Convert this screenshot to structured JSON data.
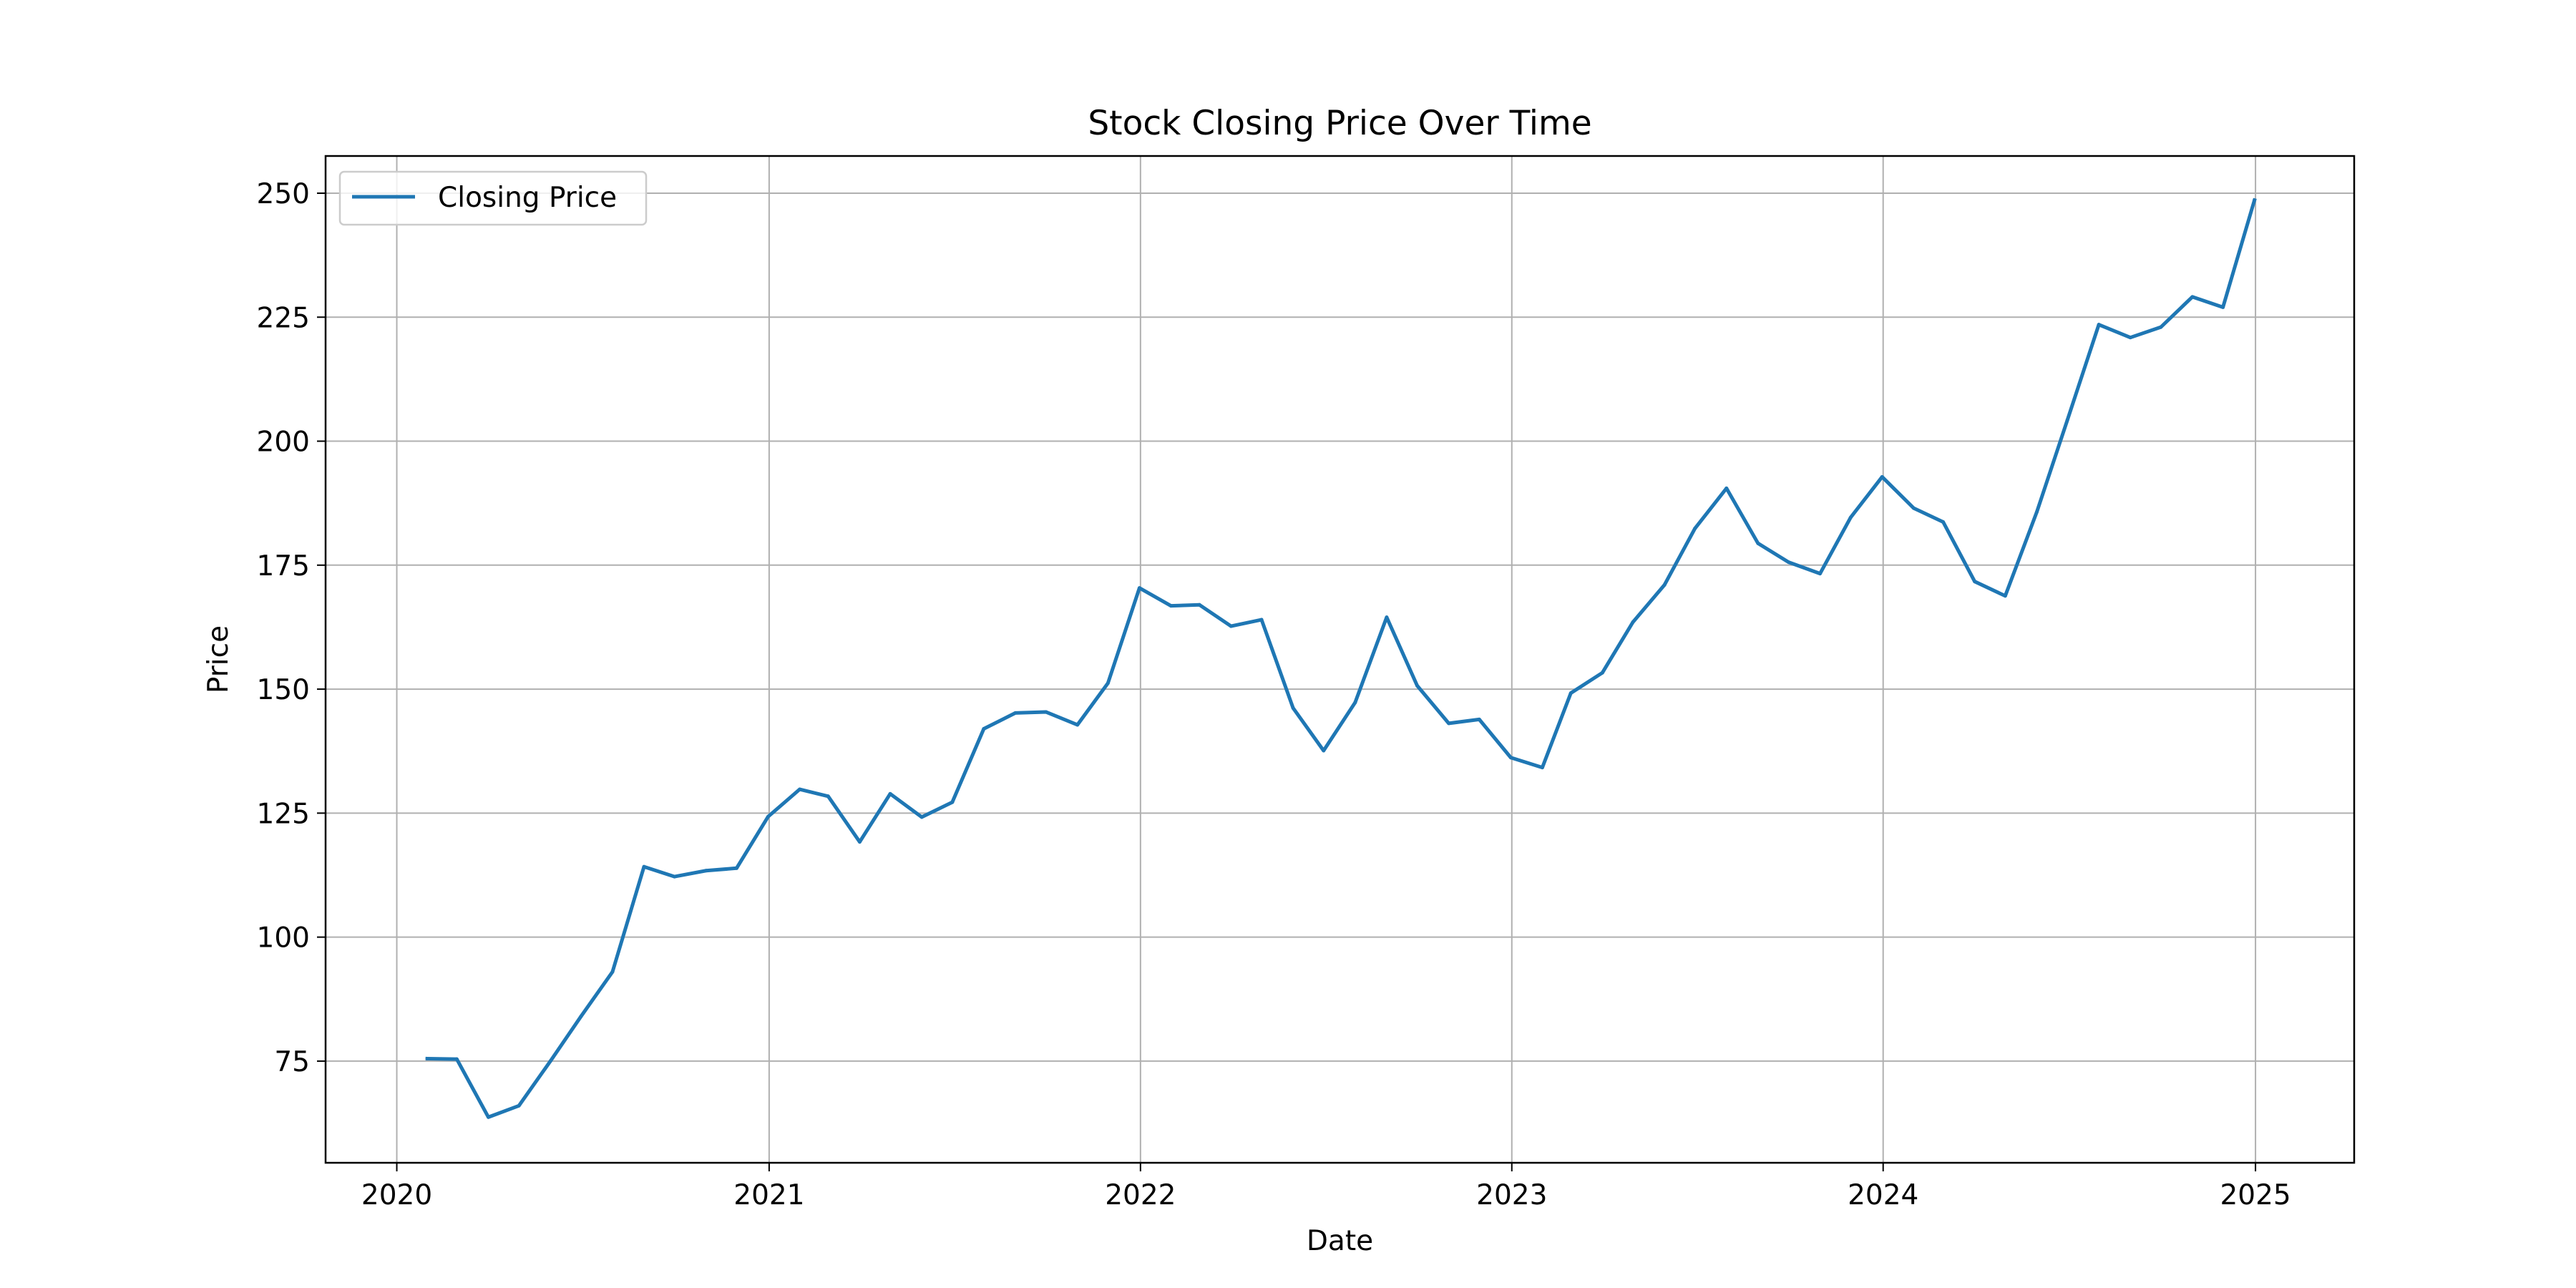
{
  "chart_data": {
    "type": "line",
    "title": "Stock Closing Price Over Time",
    "xlabel": "Date",
    "ylabel": "Price",
    "xlim": [
      "2019-10-23",
      "2025-04-08"
    ],
    "ylim": [
      54.5,
      257.5
    ],
    "grid": true,
    "legend_position": "top-left",
    "x_ticks": [
      {
        "date": "2020-01-01",
        "label": "2020"
      },
      {
        "date": "2021-01-01",
        "label": "2021"
      },
      {
        "date": "2022-01-01",
        "label": "2022"
      },
      {
        "date": "2023-01-01",
        "label": "2023"
      },
      {
        "date": "2024-01-01",
        "label": "2024"
      },
      {
        "date": "2025-01-01",
        "label": "2025"
      }
    ],
    "y_ticks": [
      {
        "value": 75,
        "label": "75"
      },
      {
        "value": 100,
        "label": "100"
      },
      {
        "value": 125,
        "label": "125"
      },
      {
        "value": 150,
        "label": "150"
      },
      {
        "value": 175,
        "label": "175"
      },
      {
        "value": 200,
        "label": "200"
      },
      {
        "value": 225,
        "label": "225"
      },
      {
        "value": 250,
        "label": "250"
      }
    ],
    "series": [
      {
        "name": "Closing Price",
        "color": "#1f77b4",
        "x": [
          "2020-01-31",
          "2020-02-29",
          "2020-03-31",
          "2020-04-30",
          "2020-05-31",
          "2020-06-30",
          "2020-07-31",
          "2020-08-31",
          "2020-09-30",
          "2020-10-31",
          "2020-11-30",
          "2020-12-31",
          "2021-01-31",
          "2021-02-28",
          "2021-03-31",
          "2021-04-30",
          "2021-05-31",
          "2021-06-30",
          "2021-07-31",
          "2021-08-31",
          "2021-09-30",
          "2021-10-31",
          "2021-11-30",
          "2021-12-31",
          "2022-01-31",
          "2022-02-28",
          "2022-03-31",
          "2022-04-30",
          "2022-05-31",
          "2022-06-30",
          "2022-07-31",
          "2022-08-31",
          "2022-09-30",
          "2022-10-31",
          "2022-11-30",
          "2022-12-31",
          "2023-01-31",
          "2023-02-28",
          "2023-03-31",
          "2023-04-30",
          "2023-05-31",
          "2023-06-30",
          "2023-07-31",
          "2023-08-31",
          "2023-09-30",
          "2023-10-31",
          "2023-11-30",
          "2023-12-31",
          "2024-01-31",
          "2024-02-29",
          "2024-03-31",
          "2024-04-30",
          "2024-05-31",
          "2024-06-30",
          "2024-07-31",
          "2024-08-31",
          "2024-09-30",
          "2024-10-31",
          "2024-11-30",
          "2024-12-31"
        ],
        "values": [
          75.5,
          75.4,
          63.7,
          66.0,
          75.0,
          84.0,
          93.0,
          114.2,
          112.2,
          113.4,
          113.9,
          124.3,
          129.8,
          128.4,
          119.2,
          128.9,
          124.2,
          127.2,
          142.0,
          145.2,
          145.4,
          142.8,
          151.2,
          170.4,
          166.8,
          167.0,
          162.7,
          164.0,
          146.2,
          137.6,
          147.3,
          164.5,
          150.7,
          143.1,
          143.9,
          136.2,
          134.2,
          149.2,
          153.3,
          163.5,
          171.0,
          182.4,
          190.5,
          179.4,
          175.6,
          173.3,
          184.6,
          192.8,
          186.5,
          183.7,
          171.7,
          168.8,
          185.7,
          204.2,
          223.5,
          220.9,
          223.0,
          229.1,
          227.0,
          248.6
        ]
      }
    ]
  }
}
